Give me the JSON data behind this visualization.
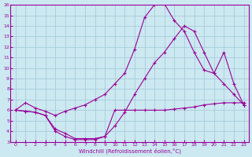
{
  "xlabel": "Windchill (Refroidissement éolien,°C)",
  "ylabel": "",
  "background_color": "#cce8f0",
  "grid_color": "#a0c8d8",
  "line_color": "#990099",
  "xlim": [
    -0.5,
    23.5
  ],
  "ylim": [
    3,
    16
  ],
  "xticks": [
    0,
    1,
    2,
    3,
    4,
    5,
    6,
    7,
    8,
    9,
    10,
    11,
    12,
    13,
    14,
    15,
    16,
    17,
    18,
    19,
    20,
    21,
    22,
    23
  ],
  "yticks": [
    3,
    4,
    5,
    6,
    7,
    8,
    9,
    10,
    11,
    12,
    13,
    14,
    15,
    16
  ],
  "series": [
    {
      "x": [
        0,
        1,
        2,
        3,
        4,
        5,
        6,
        7,
        8,
        9,
        10,
        11,
        12,
        13,
        14,
        15,
        16,
        17,
        18,
        19,
        20,
        21,
        22,
        23
      ],
      "y": [
        6,
        6.7,
        6.2,
        5.9,
        5.5,
        5.9,
        6.2,
        6.5,
        7.0,
        7.5,
        8.5,
        9.5,
        11.8,
        14.8,
        16.0,
        16.1,
        14.5,
        13.5,
        11.5,
        9.8,
        9.5,
        8.5,
        7.5,
        6.5
      ]
    },
    {
      "x": [
        0,
        1,
        2,
        3,
        4,
        5,
        6,
        7,
        8,
        9,
        10,
        11,
        12,
        13,
        14,
        15,
        16,
        17,
        18,
        19,
        20,
        21,
        22,
        23
      ],
      "y": [
        6.0,
        5.9,
        5.8,
        5.5,
        4.2,
        3.8,
        3.3,
        3.3,
        3.3,
        3.5,
        6.0,
        6.0,
        6.0,
        6.0,
        6.0,
        6.0,
        6.1,
        6.2,
        6.3,
        6.5,
        6.6,
        6.7,
        6.7,
        6.7
      ]
    },
    {
      "x": [
        0,
        1,
        2,
        3,
        4,
        5,
        6,
        7,
        8,
        9,
        10,
        11,
        12,
        13,
        14,
        15,
        16,
        17,
        18,
        19,
        20,
        21,
        22,
        23
      ],
      "y": [
        6.0,
        5.9,
        5.8,
        5.5,
        4.0,
        3.5,
        3.2,
        3.2,
        3.2,
        3.5,
        4.5,
        5.8,
        7.5,
        9.0,
        10.5,
        11.5,
        12.8,
        14.0,
        13.5,
        11.5,
        9.5,
        11.5,
        8.5,
        6.5
      ]
    }
  ]
}
